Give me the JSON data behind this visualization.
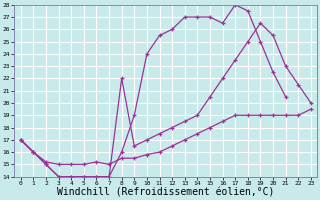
{
  "background_color": "#c8eaea",
  "line_color": "#993399",
  "grid_color": "#ffffff",
  "xlabel": "Windchill (Refroidissement éolien,°C)",
  "xlabel_fontsize": 7,
  "xlim": [
    -0.5,
    23.5
  ],
  "ylim": [
    14,
    28
  ],
  "xticks": [
    0,
    1,
    2,
    3,
    4,
    5,
    6,
    7,
    8,
    9,
    10,
    11,
    12,
    13,
    14,
    15,
    16,
    17,
    18,
    19,
    20,
    21,
    22,
    23
  ],
  "yticks": [
    14,
    15,
    16,
    17,
    18,
    19,
    20,
    21,
    22,
    23,
    24,
    25,
    26,
    27,
    28
  ],
  "curve1_x": [
    0,
    1,
    2,
    3,
    4,
    5,
    6,
    7,
    8,
    9,
    10,
    11,
    12,
    13,
    14,
    15,
    16,
    17,
    18,
    19,
    20,
    21
  ],
  "curve1_y": [
    17,
    16,
    15,
    14,
    14,
    14,
    14,
    14,
    16,
    19,
    24,
    25.5,
    26,
    27,
    27,
    27,
    26.5,
    28,
    27.5,
    25,
    22.5,
    20.5
  ],
  "curve2_x": [
    0,
    1,
    2,
    3,
    4,
    5,
    6,
    7,
    8,
    9,
    10,
    11,
    12,
    13,
    14,
    15,
    16,
    17,
    18,
    19,
    20,
    21,
    22,
    23
  ],
  "curve2_y": [
    17,
    16,
    15,
    14,
    14,
    14,
    14,
    14,
    22,
    16.5,
    17,
    17.5,
    18,
    18.5,
    19,
    20.5,
    22,
    23.5,
    25,
    26.5,
    25.5,
    23,
    21.5,
    20
  ],
  "curve3_x": [
    0,
    1,
    2,
    3,
    4,
    5,
    6,
    7,
    8,
    9,
    10,
    11,
    12,
    13,
    14,
    15,
    16,
    17,
    18,
    19,
    20,
    21,
    22,
    23
  ],
  "curve3_y": [
    17,
    16,
    15.2,
    15,
    15,
    15,
    15.2,
    15,
    15.5,
    15.5,
    15.8,
    16,
    16.5,
    17,
    17.5,
    18,
    18.5,
    19,
    19,
    19,
    19,
    19,
    19,
    19.5
  ]
}
